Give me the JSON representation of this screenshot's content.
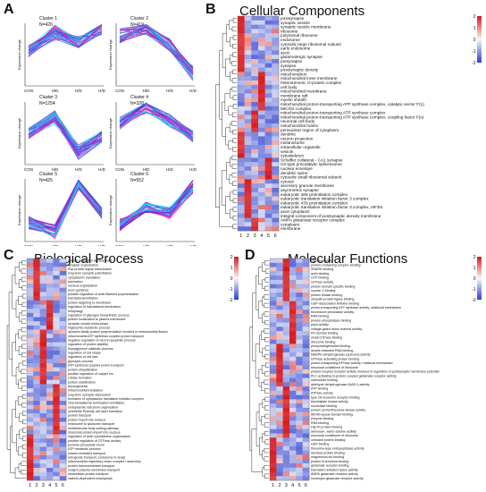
{
  "panels": {
    "A": {
      "label": "A"
    },
    "B": {
      "label": "B",
      "title": "Cellular Components"
    },
    "C": {
      "label": "C",
      "title": "Biological Process"
    },
    "D": {
      "label": "D",
      "title": "Molecular Functions"
    }
  },
  "clusters": [
    {
      "name": "Cluster 1",
      "n": "N=426",
      "shape": [
        0.45,
        0.15,
        0.3,
        0.05
      ]
    },
    {
      "name": "Cluster 2",
      "n": "N=419",
      "shape": [
        0.2,
        0.05,
        0.35,
        0.8
      ]
    },
    {
      "name": "Cluster 3",
      "n": "N=1254",
      "shape": [
        0.5,
        0.25,
        0.8,
        0.55
      ]
    },
    {
      "name": "Cluster 4",
      "n": "N=328",
      "shape": [
        0.35,
        0.05,
        0.3,
        0.55
      ]
    },
    {
      "name": "Cluster 5",
      "n": "N=425",
      "shape": [
        0.7,
        0.85,
        0.05,
        0.55
      ]
    },
    {
      "name": "Cluster 6",
      "n": "N=552",
      "shape": [
        0.75,
        0.45,
        0.55,
        0.1
      ]
    }
  ],
  "cluster_axes": {
    "ylabel": "Expression change",
    "xticks": [
      "CON",
      "H/D",
      "H/D",
      "H/D"
    ]
  },
  "heat_cols": [
    "1",
    "2",
    "3",
    "4",
    "5",
    "6"
  ],
  "legend_ticks": [
    "2",
    "1",
    "0",
    "-1",
    "-2"
  ],
  "colors": {
    "high": "#d7191c",
    "mid": "#f7f7f7",
    "low": "#2c3fd1"
  },
  "B_rows": [
    "postsynapse",
    "synaptic vesicle",
    "synaptic vesicle membrane",
    "ribosome",
    "polysomal ribosome",
    "endosome",
    "cytosolic large ribosomal subunit",
    "early endosome",
    "axon",
    "glutamatergic synapse",
    "presynapse",
    "synapse",
    "postsynaptic density",
    "mitochondrion",
    "mitochondrial inner membrane",
    "heterotrimeric G-protein complex",
    "cell body",
    "mitochondrial membrane",
    "membrane raft",
    "myelin sheath",
    "mitochondrial proton-transporting ATP synthase complex, catalytic sector F(1)",
    "MICOS complex",
    "mitochondrial proton-transporting ATP synthase complex",
    "mitochondrial proton-transporting ATP synthase complex, coupling factor F(o)",
    "neuronal cell body",
    "mitochondrial matrix",
    "perinuclear region of cytoplasm",
    "dendrite",
    "neuron projection",
    "melanosome",
    "intracellular organelle",
    "vesicle",
    "cytoskeleton",
    "Schaffer collateral - CA1 synapse",
    "U2-type precatalytic spliceosome",
    "nuclear envelope",
    "dendritic spine",
    "cytosolic small ribosomal subunit",
    "cytosol",
    "secretory granule membrane",
    "asymmetric synapse",
    "eukaryotic 48S preinitiation complex",
    "eukaryotic translation initiation factor 3 complex",
    "eukaryotic 43S preinitiation complex",
    "eukaryotic translation initiation factor 3 complex, eIF3m",
    "axon cytoplasm",
    "integral component of postsynaptic density membrane",
    "AMPA glutamate receptor complex",
    "cytoplasm",
    "membrane"
  ],
  "C_rows": [
    "neuron projection development",
    "synapse organization",
    "Rac protein signal transduction",
    "long-term synaptic potentiation",
    "cytoplasmic translation",
    "translation",
    "nucleus organization",
    "axon guidance",
    "positive regulation of actin filament polymerization",
    "translational initiation",
    "protein targeting to membrane",
    "regulation of translational termination",
    "mitophagy",
    "regulation of glycogen biosynthetic process",
    "protein localization to plasma membrane",
    "synaptic vesicle endocytosis",
    "triglyceride metabolic process",
    "dynamin family protein polymerization involved in mitochondrial fission",
    "mitochondrial ATP synthesis coupled proton transport",
    "negative regulation of neuron apoptotic process",
    "regulation of protein stability",
    "triacylglycerol catabolic process",
    "regulation of cell shape",
    "regulation of cell size",
    "glycolytic process",
    "ATP synthesis coupled proton transport",
    "protein ubiquitination",
    "positive regulation of copper ion",
    "cristae formation",
    "protein stabilization",
    "axonogenesis",
    "mitochondrial translation",
    "long-term synaptic depression",
    "formation of cytoplasmic translation initiation complex",
    "viral translational termination-reinitiation",
    "endoplasmic reticulum organization",
    "cerebellar Purkinje cell layer formation",
    "protein transport",
    "protein import into nucleus",
    "endosome to lysosome transport",
    "multivesicular body sorting pathway",
    "ribosomal protein import into nucleus",
    "regulation of actin cytoskeleton organization",
    "positive regulation of GTPase activity",
    "pentose-phosphate shunt",
    "ATP metabolic process",
    "vesicle-mediated transport",
    "retrograde transport, endosome to Golgi",
    "mitochondrial respiratory chain complex I assembly",
    "protein transmembrane transport",
    "Golgi to plasma membrane transport",
    "intracellular protein transport",
    "clathrin-dependent endocytosis"
  ],
  "D_rows": [
    "clathrin binding",
    "protein-containing complex binding",
    "SNARE binding",
    "actin binding",
    "GTP binding",
    "GTPase activity",
    "protein domain specific binding",
    "myosin V binding",
    "protein kinase binding",
    "ubiquitin protein ligase binding",
    "GDP-dissociation inhibitor binding",
    "proton-transporting ATP synthase activity, rotational mechanism",
    "thioredoxin peroxidase activity",
    "RNA binding",
    "protein phosphatase binding",
    "porin activity",
    "voltage-gated anion channel activity",
    "PH domain binding",
    "small GTPase binding",
    "ribosome binding",
    "phosphatidylinositol binding",
    "double-stranded RNA binding",
    "NADPH dehydrogenase (quinone) activity",
    "GTPase activating protein binding",
    "proton-transporting ATPase activity, rotational mechanism",
    "structural constituent of ribosome",
    "protein-coupled receptor activity involved in regulation of postsynaptic membrane potential",
    "PLC activating G-protein coupled glutamate receptor activity",
    "calmodulin binding",
    "aldehyde dehydrogenase (NAD+) activity",
    "ATP binding",
    "ATPase activity",
    "type 2A serotonin receptor binding",
    "thymidylate kinase activity",
    "nucleotide binding",
    "protein serine/threonine kinase activity",
    "WD40-repeat domain binding",
    "enzyme binding",
    "RNA binding",
    "Hsp70 protein binding",
    "adenosyl-, water-soluble activity",
    "structural constituent of ribosome",
    "unfolded protein binding",
    "GDP binding",
    "threonine-type endopeptidase activity",
    "identical protein binding",
    "magnesium ion binding",
    "protein N-terminus binding",
    "glutamate receptor binding",
    "translation initiation factor activity",
    "AMPA glutamate receptor activity",
    "ionotropic glutamate receptor activity"
  ]
}
